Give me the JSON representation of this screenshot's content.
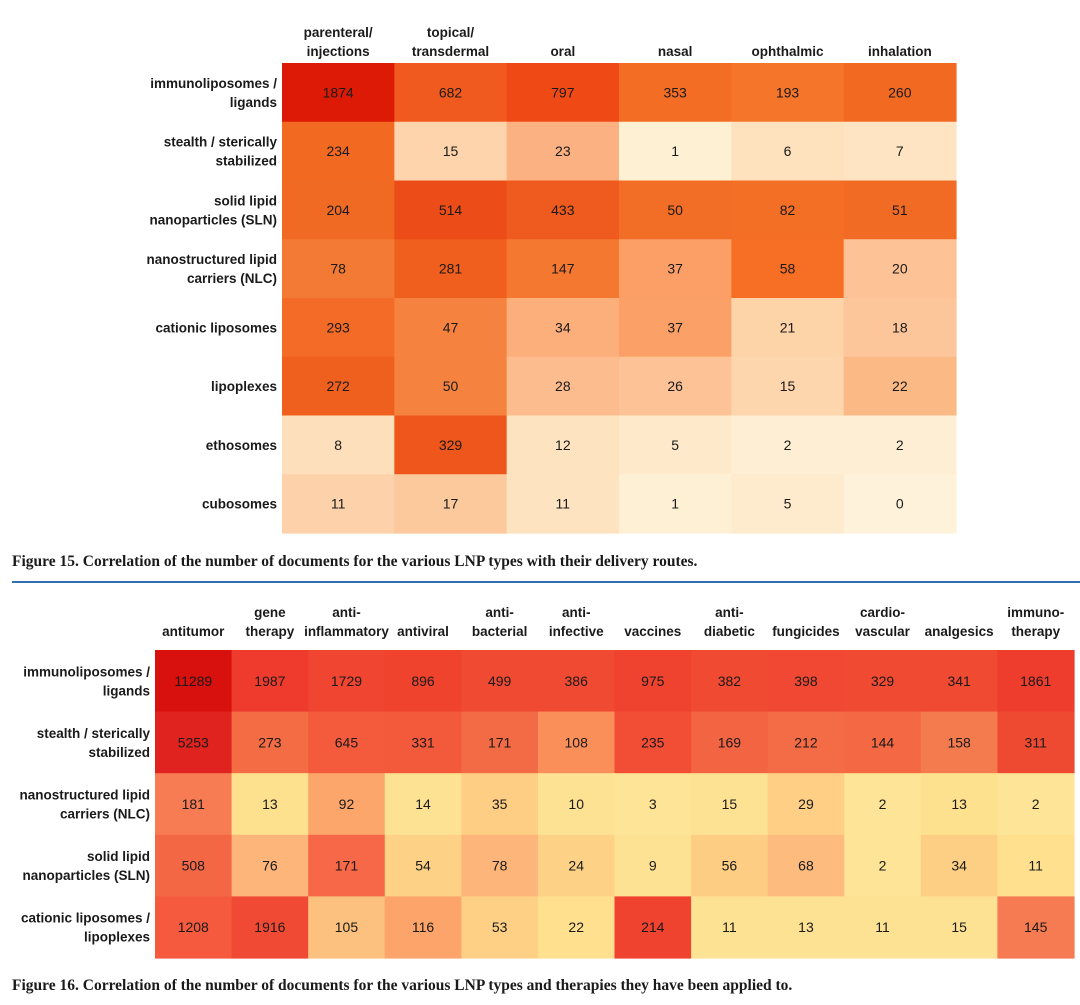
{
  "chart_data": [
    {
      "type": "heatmap",
      "title": "",
      "columns": [
        [
          "parenteral/",
          "injections"
        ],
        [
          "topical/",
          "transdermal"
        ],
        [
          "oral"
        ],
        [
          "nasal"
        ],
        [
          "ophthalmic"
        ],
        [
          "inhalation"
        ]
      ],
      "rows": [
        [
          "immunoliposomes /",
          "ligands"
        ],
        [
          "stealth / sterically",
          "stabilized"
        ],
        [
          "solid lipid",
          "nanoparticles (SLN)"
        ],
        [
          "nanostructured lipid",
          "carriers (NLC)"
        ],
        [
          "cationic liposomes"
        ],
        [
          "lipoplexes"
        ],
        [
          "ethosomes"
        ],
        [
          "cubosomes"
        ]
      ],
      "values": [
        [
          1874,
          682,
          797,
          353,
          193,
          260
        ],
        [
          234,
          15,
          23,
          1,
          6,
          7
        ],
        [
          204,
          514,
          433,
          50,
          82,
          51
        ],
        [
          78,
          281,
          147,
          37,
          58,
          20
        ],
        [
          293,
          47,
          34,
          37,
          21,
          18
        ],
        [
          272,
          50,
          28,
          26,
          15,
          22
        ],
        [
          8,
          329,
          12,
          5,
          2,
          2
        ],
        [
          11,
          17,
          11,
          1,
          5,
          0
        ]
      ],
      "cell_colors": [
        [
          "#dc1a06",
          "#f05a1e",
          "#ef4a16",
          "#f46d25",
          "#f5762a",
          "#f26a22"
        ],
        [
          "#f26a22",
          "#fdd4ac",
          "#fbb181",
          "#fef0d2",
          "#fee1bd",
          "#fee4c2"
        ],
        [
          "#f06a24",
          "#ec4c18",
          "#ef5a1e",
          "#f26d25",
          "#f46f26",
          "#f26b24"
        ],
        [
          "#f37a35",
          "#f15f1e",
          "#f4782f",
          "#fb9f66",
          "#f66f25",
          "#fdc397"
        ],
        [
          "#f46b27",
          "#f6823f",
          "#fcae7b",
          "#fba066",
          "#fdd3a8",
          "#fdc59a"
        ],
        [
          "#ef5f1e",
          "#f6823f",
          "#fcbc8d",
          "#fdc396",
          "#fdd6ad",
          "#fbb985"
        ],
        [
          "#fde0bb",
          "#ef561b",
          "#fee3c0",
          "#feeacb",
          "#feefd4",
          "#feefd4"
        ],
        [
          "#fdd2aa",
          "#fcc99d",
          "#fee3c0",
          "#fef0d4",
          "#feeacc",
          "#fff2da"
        ]
      ]
    },
    {
      "type": "heatmap",
      "title": "",
      "columns": [
        [
          "antitumor"
        ],
        [
          "gene",
          "therapy"
        ],
        [
          "anti-",
          "inflammatory"
        ],
        [
          "antiviral"
        ],
        [
          "anti-",
          "bacterial"
        ],
        [
          "anti-",
          "infective"
        ],
        [
          "vaccines"
        ],
        [
          "anti-",
          "diabetic"
        ],
        [
          "fungicides"
        ],
        [
          "cardio-",
          "vascular"
        ],
        [
          "analgesics"
        ],
        [
          "immuno-",
          "therapy"
        ]
      ],
      "rows": [
        [
          "immunoliposomes /",
          "ligands"
        ],
        [
          "stealth / sterically",
          "stabilized"
        ],
        [
          "nanostructured lipid",
          "carriers (NLC)"
        ],
        [
          "solid lipid",
          "nanoparticles (SLN)"
        ],
        [
          "cationic liposomes /",
          "lipoplexes"
        ]
      ],
      "values": [
        [
          11289,
          1987,
          1729,
          896,
          499,
          386,
          975,
          382,
          398,
          329,
          341,
          1861
        ],
        [
          5253,
          273,
          645,
          331,
          171,
          108,
          235,
          169,
          212,
          144,
          158,
          311
        ],
        [
          181,
          13,
          92,
          14,
          35,
          10,
          3,
          15,
          29,
          2,
          13,
          2
        ],
        [
          508,
          76,
          171,
          54,
          78,
          24,
          9,
          56,
          68,
          2,
          34,
          11
        ],
        [
          1208,
          1916,
          105,
          116,
          53,
          22,
          214,
          11,
          13,
          11,
          15,
          145
        ]
      ],
      "cell_colors": [
        [
          "#d8100e",
          "#ee3b2d",
          "#f04530",
          "#f0432e",
          "#f04a32",
          "#f14a32",
          "#ef432f",
          "#f14a32",
          "#f04832",
          "#f04a32",
          "#f04a32",
          "#ee3c2d"
        ],
        [
          "#e0231f",
          "#f46c44",
          "#f35b3c",
          "#f35a3b",
          "#f26b45",
          "#fb8f59",
          "#f24e35",
          "#f36442",
          "#f46c45",
          "#f46944",
          "#f47b4d",
          "#ee4a32"
        ],
        [
          "#f77c54",
          "#fde18f",
          "#fca66b",
          "#fee294",
          "#fdce83",
          "#fee294",
          "#fee496",
          "#fee294",
          "#fecf84",
          "#fee496",
          "#fde18f",
          "#fee496"
        ],
        [
          "#f46745",
          "#fdb57a",
          "#f76848",
          "#fdd286",
          "#fdb57a",
          "#fdd286",
          "#fee294",
          "#fdcd83",
          "#fdbc7e",
          "#fee496",
          "#fdcf84",
          "#fee08f"
        ],
        [
          "#f55a3f",
          "#f14a34",
          "#fcc17e",
          "#fca469",
          "#fdd085",
          "#fee08f",
          "#f0432f",
          "#fee294",
          "#fee294",
          "#fee294",
          "#fee294",
          "#f67a52"
        ]
      ]
    }
  ],
  "captions": {
    "figure15": "Figure 15. Correlation of the number of documents for the various LNP types with their delivery routes.",
    "figure16": "Figure 16. Correlation of the number of documents for the various LNP types and therapies they have been applied to."
  }
}
